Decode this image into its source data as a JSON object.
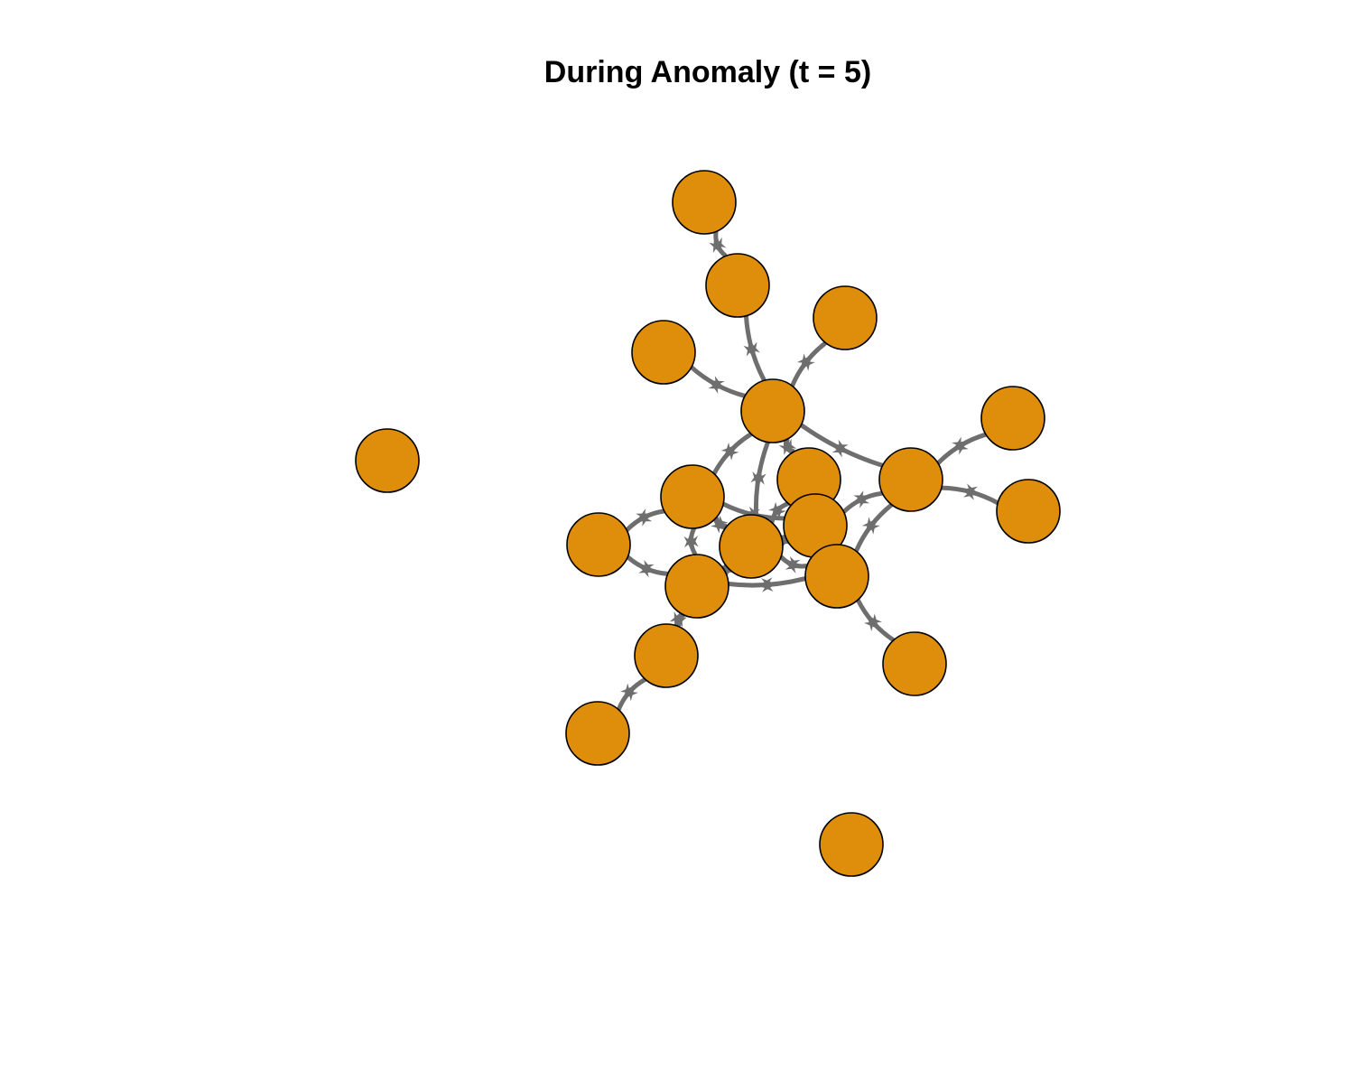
{
  "title": "During Anomaly (t = 5)",
  "colors": {
    "node_fill": "#DE8E0B",
    "node_stroke": "#000000",
    "edge": "#6E6E6E",
    "background": "#FFFFFF"
  },
  "nodes": [
    {
      "id": "n01"
    },
    {
      "id": "n02"
    },
    {
      "id": "n03"
    },
    {
      "id": "n04"
    },
    {
      "id": "n05"
    },
    {
      "id": "n06"
    },
    {
      "id": "n07"
    },
    {
      "id": "n08"
    },
    {
      "id": "n09"
    },
    {
      "id": "n10"
    },
    {
      "id": "n11"
    },
    {
      "id": "n12"
    },
    {
      "id": "n13"
    },
    {
      "id": "n14"
    },
    {
      "id": "n15"
    },
    {
      "id": "n16"
    },
    {
      "id": "n17"
    },
    {
      "id": "n18"
    },
    {
      "id": "n19"
    },
    {
      "id": "n20"
    },
    {
      "id": "n21"
    }
  ],
  "edges": [
    {
      "source": "n01",
      "target": "n02",
      "bidirectional": true
    },
    {
      "source": "n02",
      "target": "n05",
      "bidirectional": true
    },
    {
      "source": "n03",
      "target": "n05",
      "bidirectional": true
    },
    {
      "source": "n04",
      "target": "n05",
      "bidirectional": true
    },
    {
      "source": "n05",
      "target": "n07",
      "bidirectional": true
    },
    {
      "source": "n05",
      "target": "n08",
      "bidirectional": true
    },
    {
      "source": "n05",
      "target": "n09",
      "bidirectional": true
    },
    {
      "source": "n05",
      "target": "n13",
      "bidirectional": true
    },
    {
      "source": "n05",
      "target": "n12",
      "bidirectional": true
    },
    {
      "source": "n08",
      "target": "n06",
      "bidirectional": true
    },
    {
      "source": "n08",
      "target": "n10",
      "bidirectional": true
    },
    {
      "source": "n08",
      "target": "n14",
      "bidirectional": true
    },
    {
      "source": "n08",
      "target": "n12",
      "bidirectional": true
    },
    {
      "source": "n08",
      "target": "n15",
      "bidirectional": true
    },
    {
      "source": "n09",
      "target": "n11",
      "bidirectional": true
    },
    {
      "source": "n09",
      "target": "n12",
      "bidirectional": true
    },
    {
      "source": "n09",
      "target": "n14",
      "bidirectional": true
    },
    {
      "source": "n09",
      "target": "n15",
      "bidirectional": true
    },
    {
      "source": "n09",
      "target": "n16",
      "bidirectional": true
    },
    {
      "source": "n09",
      "target": "n13",
      "bidirectional": true
    },
    {
      "source": "n10",
      "target": "n13",
      "bidirectional": true
    },
    {
      "source": "n10",
      "target": "n15",
      "bidirectional": true
    },
    {
      "source": "n12",
      "target": "n13",
      "bidirectional": true
    },
    {
      "source": "n12",
      "target": "n14",
      "bidirectional": true
    },
    {
      "source": "n12",
      "target": "n15",
      "bidirectional": true
    },
    {
      "source": "n13",
      "target": "n15",
      "bidirectional": true
    },
    {
      "source": "n13",
      "target": "n14",
      "bidirectional": true
    },
    {
      "source": "n14",
      "target": "n15",
      "bidirectional": true
    },
    {
      "source": "n14",
      "target": "n16",
      "bidirectional": true
    },
    {
      "source": "n15",
      "target": "n18",
      "bidirectional": true
    },
    {
      "source": "n14",
      "target": "n18",
      "bidirectional": true
    },
    {
      "source": "n15",
      "target": "n17",
      "bidirectional": true
    },
    {
      "source": "n17",
      "target": "n19",
      "bidirectional": true
    }
  ]
}
